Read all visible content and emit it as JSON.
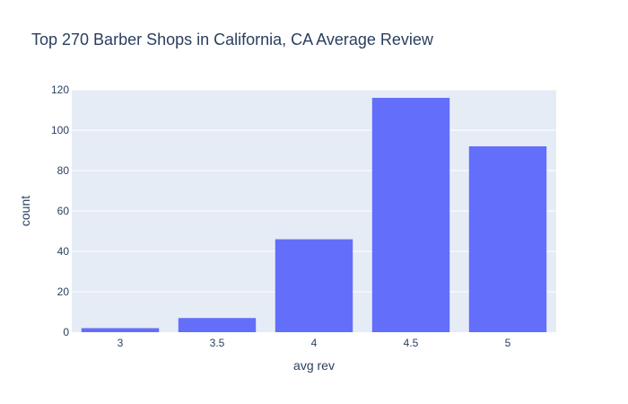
{
  "chart_data": {
    "type": "bar",
    "title": "Top 270 Barber Shops in California, CA Average Review",
    "xlabel": "avg rev",
    "ylabel": "count",
    "categories": [
      "3",
      "3.5",
      "4",
      "4.5",
      "5"
    ],
    "values": [
      2,
      7,
      46,
      116,
      92
    ],
    "ylim": [
      0,
      120
    ],
    "yticks": [
      0,
      20,
      40,
      60,
      80,
      100,
      120
    ],
    "grid": true,
    "colors": {
      "bar": "#636efa",
      "plot_background": "#e5ecf6",
      "grid": "#ffffff",
      "text": "#2a3f5f"
    }
  }
}
